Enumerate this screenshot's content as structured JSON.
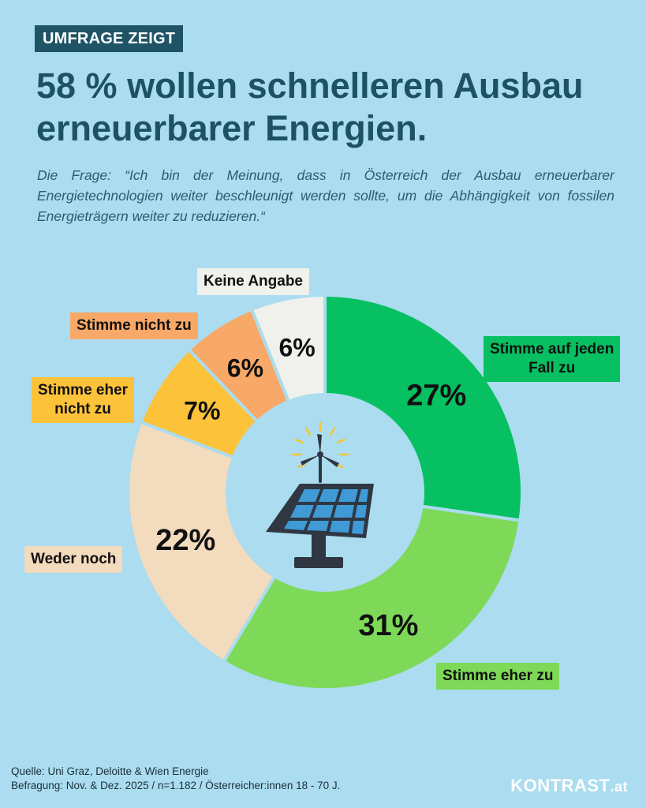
{
  "header": {
    "tag": "UMFRAGE ZEIGT",
    "headline_line1": "58 % wollen schnelleren Ausbau",
    "headline_line2": "erneuerbarer Energien.",
    "question": "Die Frage: “Ich bin der Meinung, dass in Österreich der Ausbau erneuerbarer Energietechnologien weiter beschleunigt werden sollte, um die Abhängigkeit von fossilen Energieträgern weiter zu reduzieren.“"
  },
  "chart_data": {
    "type": "pie",
    "donut": true,
    "categories": [
      "Stimme auf jeden Fall zu",
      "Stimme eher zu",
      "Weder noch",
      "Stimme eher nicht zu",
      "Stimme nicht zu",
      "Keine Angabe"
    ],
    "values": [
      27,
      31,
      22,
      7,
      6,
      6
    ],
    "value_labels": [
      "27%",
      "31%",
      "22%",
      "7%",
      "6%",
      "6%"
    ],
    "colors": [
      "#06c061",
      "#7dd957",
      "#f3dbbd",
      "#fcc33a",
      "#f8a867",
      "#f0f0ec"
    ],
    "center_icon": "solar-panel-wind-turbine-icon"
  },
  "labels": {
    "stimme_auf_jeden_fall_line1": "Stimme auf jeden",
    "stimme_auf_jeden_fall_line2": "Fall zu",
    "stimme_eher_zu": "Stimme eher zu",
    "weder_noch": "Weder noch",
    "stimme_eher_nicht_line1": "Stimme eher",
    "stimme_eher_nicht_line2": "nicht zu",
    "stimme_nicht_zu": "Stimme nicht zu",
    "keine_angabe": "Keine Angabe"
  },
  "footer": {
    "source": "Quelle: Uni Graz, Deloitte & Wien Energie",
    "survey": "Befragung: Nov. & Dez. 2025 / n=1.182 / Österreicher:innen 18 - 70 J."
  },
  "brand": {
    "name": "KONTRAST",
    "suffix": ".at"
  }
}
